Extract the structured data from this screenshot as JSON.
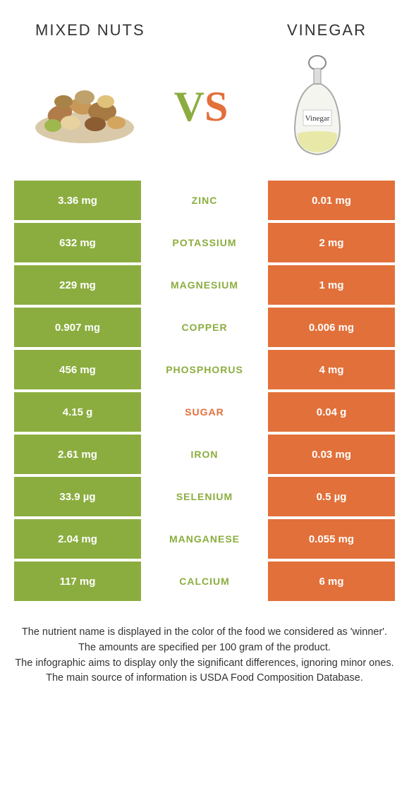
{
  "colors": {
    "green": "#8bad3f",
    "orange": "#e2703a",
    "green_text": "#8bad3f",
    "orange_text": "#e2703a"
  },
  "left_title": "MIXED NUTS",
  "right_title": "VINEGAR",
  "vinegar_label": "Vinegar",
  "vs_v": "V",
  "vs_s": "S",
  "rows": [
    {
      "left": "3.36 mg",
      "mid": "ZINC",
      "right": "0.01 mg",
      "winner": "left"
    },
    {
      "left": "632 mg",
      "mid": "POTASSIUM",
      "right": "2 mg",
      "winner": "left"
    },
    {
      "left": "229 mg",
      "mid": "MAGNESIUM",
      "right": "1 mg",
      "winner": "left"
    },
    {
      "left": "0.907 mg",
      "mid": "COPPER",
      "right": "0.006 mg",
      "winner": "left"
    },
    {
      "left": "456 mg",
      "mid": "PHOSPHORUS",
      "right": "4 mg",
      "winner": "left"
    },
    {
      "left": "4.15 g",
      "mid": "SUGAR",
      "right": "0.04 g",
      "winner": "right"
    },
    {
      "left": "2.61 mg",
      "mid": "IRON",
      "right": "0.03 mg",
      "winner": "left"
    },
    {
      "left": "33.9 µg",
      "mid": "SELENIUM",
      "right": "0.5 µg",
      "winner": "left"
    },
    {
      "left": "2.04 mg",
      "mid": "MANGANESE",
      "right": "0.055 mg",
      "winner": "left"
    },
    {
      "left": "117 mg",
      "mid": "CALCIUM",
      "right": "6 mg",
      "winner": "left"
    }
  ],
  "footer": [
    "The nutrient name is displayed in the color of the food we considered as 'winner'.",
    "The amounts are specified per 100 gram of the product.",
    "The infographic aims to display only the significant differences, ignoring minor ones.",
    "The main source of information is USDA Food Composition Database."
  ]
}
